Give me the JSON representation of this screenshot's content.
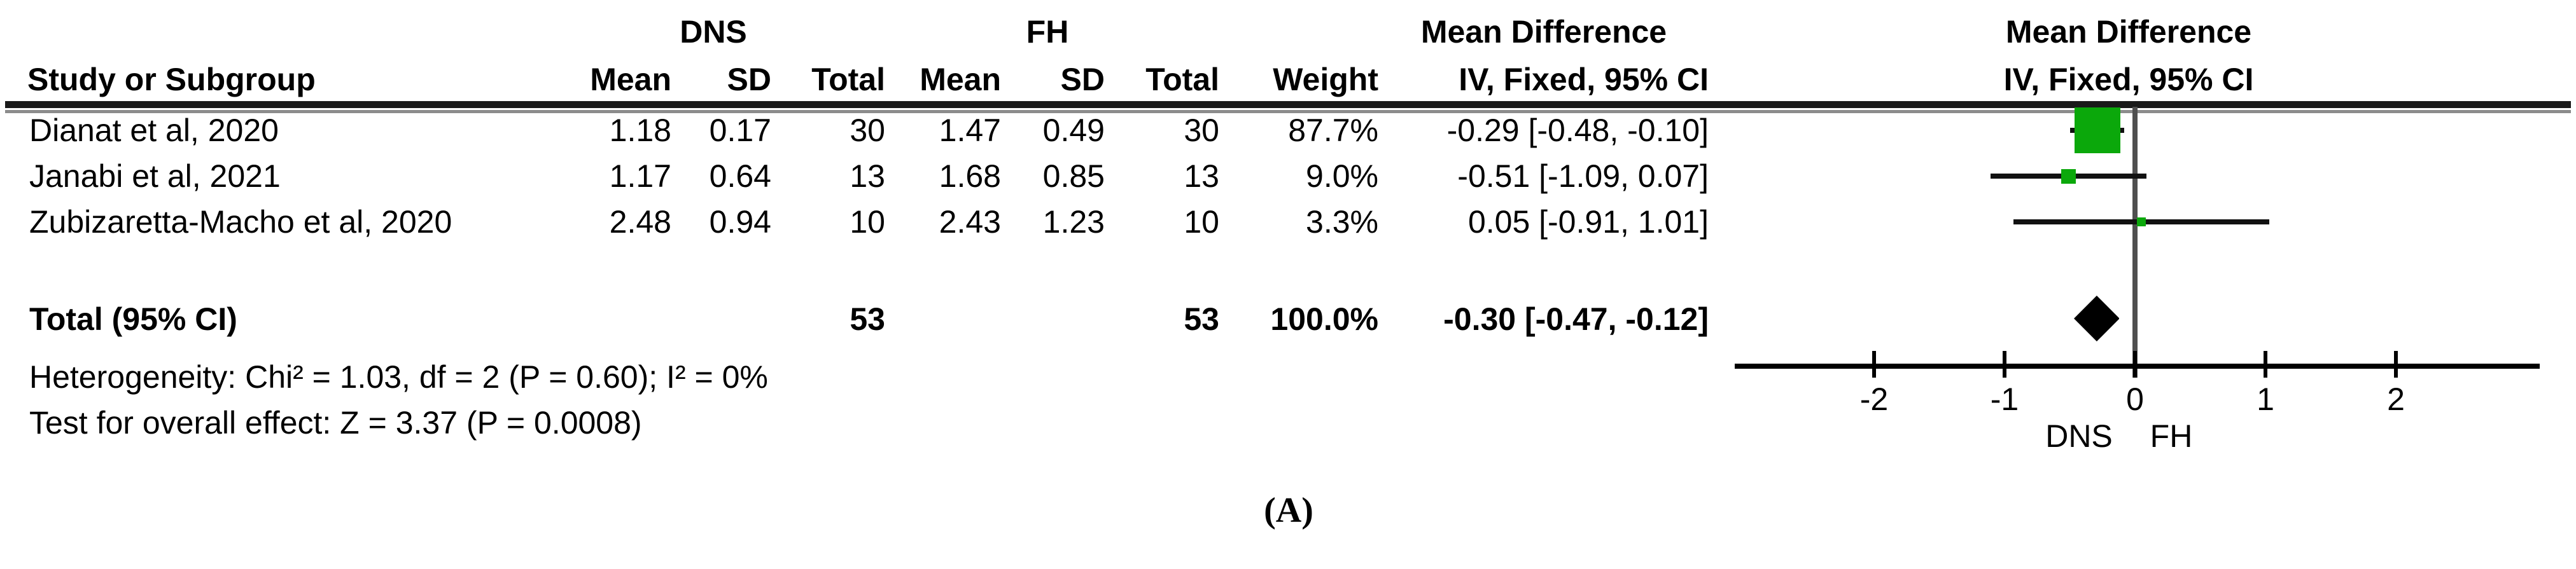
{
  "table": {
    "col_study": "Study or Subgroup",
    "group1": "DNS",
    "group2": "FH",
    "col_mean1": "Mean",
    "col_sd1": "SD",
    "col_total1": "Total",
    "col_mean2": "Mean",
    "col_sd2": "SD",
    "col_total2": "Total",
    "col_weight": "Weight",
    "col_md": "Mean Difference",
    "col_iv": "IV, Fixed, 95% CI"
  },
  "graph_header": {
    "line1": "Mean Difference",
    "line2": "IV, Fixed, 95% CI"
  },
  "studies": [
    {
      "name": "Dianat et al, 2020",
      "mean1": "1.18",
      "sd1": "0.17",
      "total1": "30",
      "mean2": "1.47",
      "sd2": "0.49",
      "total2": "30",
      "weight": "87.7%",
      "ci_text": "-0.29 [-0.48, -0.10]"
    },
    {
      "name": "Janabi et al, 2021",
      "mean1": "1.17",
      "sd1": "0.64",
      "total1": "13",
      "mean2": "1.68",
      "sd2": "0.85",
      "total2": "13",
      "weight": "9.0%",
      "ci_text": "-0.51 [-1.09, 0.07]"
    },
    {
      "name": "Zubizaretta-Macho et al, 2020",
      "mean1": "2.48",
      "sd1": "0.94",
      "total1": "10",
      "mean2": "2.43",
      "sd2": "1.23",
      "total2": "10",
      "weight": "3.3%",
      "ci_text": "0.05 [-0.91, 1.01]"
    }
  ],
  "total_row": {
    "label": "Total (95% CI)",
    "total1": "53",
    "total2": "53",
    "weight": "100.0%",
    "ci_text": "-0.30 [-0.47, -0.12]"
  },
  "footnotes": {
    "heterogeneity": "Heterogeneity: Chi² = 1.03, df = 2 (P = 0.60); I² = 0%",
    "overall_effect": "Test for overall effect: Z = 3.37 (P = 0.0008)"
  },
  "axis": {
    "tick_labels": [
      "-2",
      "-1",
      "0",
      "1",
      "2"
    ],
    "label_left": "DNS",
    "label_right": "FH"
  },
  "panel_label": "(A)",
  "colors": {
    "square_green": "#0BA80B",
    "diamond_black": "#000000",
    "zero_line_gray": "#4f4f4f"
  },
  "chart_data": {
    "type": "forest",
    "effect_measure": "Mean Difference, IV, Fixed, 95% CI",
    "group_experimental": "DNS",
    "group_control": "FH",
    "studies": [
      {
        "name": "Dianat et al, 2020",
        "mean1": 1.18,
        "sd1": 0.17,
        "n1": 30,
        "mean2": 1.47,
        "sd2": 0.49,
        "n2": 30,
        "md": -0.29,
        "ci_low": -0.48,
        "ci_high": -0.1,
        "weight_pct": 87.7
      },
      {
        "name": "Janabi et al, 2021",
        "mean1": 1.17,
        "sd1": 0.64,
        "n1": 13,
        "mean2": 1.68,
        "sd2": 0.85,
        "n2": 13,
        "md": -0.51,
        "ci_low": -1.09,
        "ci_high": 0.07,
        "weight_pct": 9.0
      },
      {
        "name": "Zubizaretta-Macho et al, 2020",
        "mean1": 2.48,
        "sd1": 0.94,
        "n1": 10,
        "mean2": 2.43,
        "sd2": 1.23,
        "n2": 10,
        "md": 0.05,
        "ci_low": -0.91,
        "ci_high": 1.01,
        "weight_pct": 3.3
      }
    ],
    "total": {
      "n1": 53,
      "n2": 53,
      "md": -0.3,
      "ci_low": -0.47,
      "ci_high": -0.12,
      "weight_pct": 100.0
    },
    "x_ticks": [
      -2,
      -1,
      0,
      1,
      2
    ],
    "xlim": [
      -3.07,
      3.1
    ],
    "heterogeneity": {
      "chi2": 1.03,
      "df": 2,
      "p": 0.6,
      "i2_pct": 0
    },
    "overall_effect": {
      "z": 3.37,
      "p": 0.0008
    }
  }
}
